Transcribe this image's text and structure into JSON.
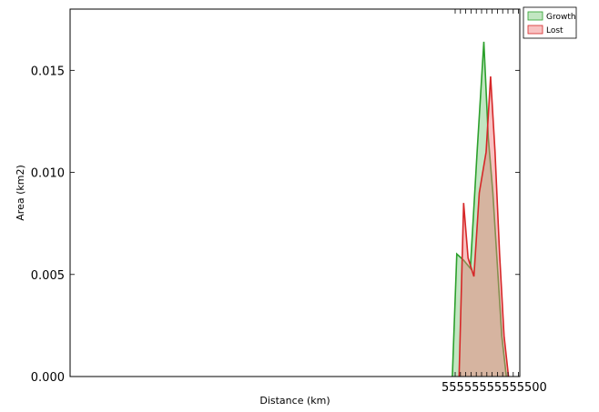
{
  "chart_data": {
    "type": "area",
    "xlabel": "Distance (km)",
    "ylabel": "Area (km2)",
    "xlim": [
      0,
      100
    ],
    "ylim": [
      0,
      0.018
    ],
    "y_ticks": [
      0.0,
      0.005,
      0.01,
      0.015
    ],
    "y_tick_labels": [
      "0.000",
      "0.005",
      "0.010",
      "0.015"
    ],
    "x_tick_labels_visible": "55555555555500",
    "grid": false,
    "legend": "top-right",
    "series": [
      {
        "name": "Growth",
        "color": "#2ca02c",
        "fill": "rgba(120,200,120,0.45)",
        "x": [
          85.0,
          86.0,
          87.5,
          89.0,
          90.5,
          92.0,
          93.0,
          94.0,
          95.0,
          96.0,
          97.0
        ],
        "values": [
          0.0,
          0.006,
          0.0057,
          0.0053,
          0.011,
          0.0164,
          0.0117,
          0.009,
          0.0055,
          0.002,
          0.0
        ]
      },
      {
        "name": "Lost",
        "color": "#d62728",
        "fill": "rgba(240,120,120,0.45)",
        "x": [
          86.5,
          87.5,
          88.5,
          89.8,
          91.0,
          92.5,
          93.5,
          94.5,
          95.5,
          96.5,
          97.5
        ],
        "values": [
          0.0,
          0.0085,
          0.0058,
          0.0049,
          0.009,
          0.011,
          0.0147,
          0.011,
          0.006,
          0.002,
          0.0
        ]
      }
    ]
  }
}
